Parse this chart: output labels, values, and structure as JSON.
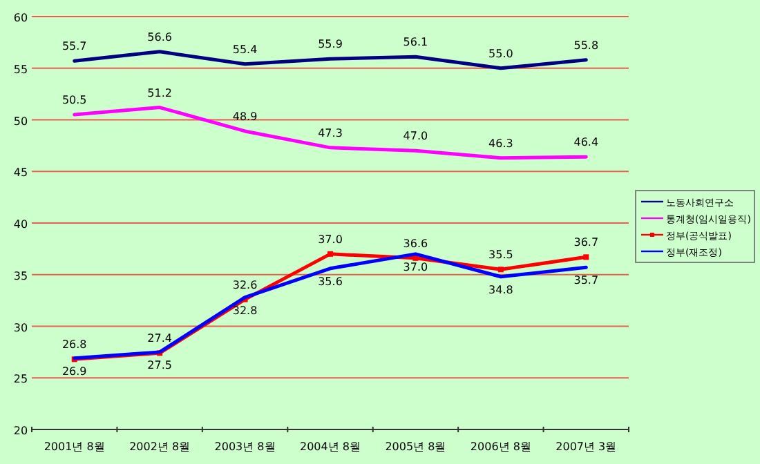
{
  "chart_data": {
    "type": "line",
    "categories": [
      "2001년 8월",
      "2002년 8월",
      "2003년 8월",
      "2004년 8월",
      "2005년 8월",
      "2006년 8월",
      "2007년 3월"
    ],
    "series": [
      {
        "name": "노동사회연구소",
        "color": "#000080",
        "values": [
          55.7,
          56.6,
          55.4,
          55.9,
          56.1,
          55.0,
          55.8
        ],
        "value_labels": [
          "55.7",
          "56.6",
          "55.4",
          "55.9",
          "56.1",
          "55.0",
          "55.8"
        ]
      },
      {
        "name": "통계청(임시일용직)",
        "color": "#ff00ff",
        "values": [
          50.5,
          51.2,
          48.9,
          47.3,
          47.0,
          46.3,
          46.4
        ],
        "value_labels": [
          "50.5",
          "51.2",
          "48.9",
          "47.3",
          "47.0",
          "46.3",
          "46.4"
        ]
      },
      {
        "name": "정부(공식발표)",
        "color": "#ff0000",
        "marker": "square",
        "values": [
          26.8,
          27.4,
          32.6,
          37.0,
          36.6,
          35.5,
          36.7
        ],
        "value_labels": [
          "26.8",
          "27.4",
          "32.6",
          "37.0",
          "36.6",
          "35.5",
          "36.7"
        ]
      },
      {
        "name": "정부(재조정)",
        "color": "#0000ff",
        "values": [
          26.9,
          27.5,
          32.8,
          35.6,
          37.0,
          34.8,
          35.7
        ],
        "value_labels": [
          "26.9",
          "27.5",
          "32.8",
          "35.6",
          "37.0",
          "34.8",
          "35.7"
        ]
      }
    ],
    "ylim": [
      20,
      60
    ],
    "yticks": [
      20,
      25,
      30,
      35,
      40,
      45,
      50,
      55,
      60
    ],
    "grid": "y",
    "legend": "right",
    "marker": "none",
    "line_style": "solid"
  }
}
